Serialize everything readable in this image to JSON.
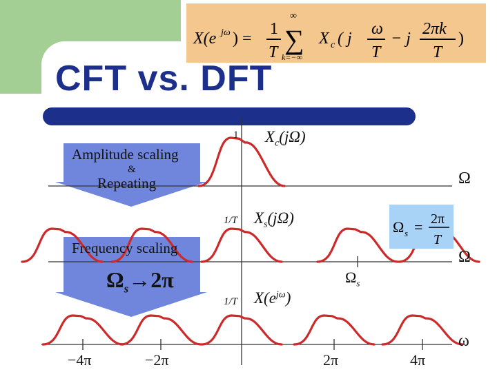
{
  "slide": {
    "title": "CFT vs. DFT",
    "formula": {
      "lhs": "X(e",
      "lhs_sup": "jω",
      "lhs_close": ") =",
      "frac1_num": "1",
      "frac1_den": "T",
      "sum_upper": "∞",
      "sum_sign": "∑",
      "sum_lower": "k=−∞",
      "term": "X",
      "term_sub": "c",
      "term_open": "( j",
      "frac2_num": "ω",
      "frac2_den": "T",
      "minus_j": "− j",
      "frac3_num": "2πk",
      "frac3_den": "T",
      "close": ")"
    }
  },
  "arrows": {
    "first": {
      "line1": "Amplitude scaling",
      "line2": "&",
      "line3": "Repeating",
      "color": "#6f86dc"
    },
    "second": {
      "line1": "Frequency scaling",
      "line2": "Ω",
      "line2_sub": "s",
      "line2_rest": "→2π",
      "color": "#6f86dc"
    }
  },
  "plots": {
    "top": {
      "amp": "1",
      "name": "X",
      "name_sub": "c",
      "name_rest": "(jΩ)",
      "axis": "Ω"
    },
    "middle": {
      "amp": "1/T",
      "name": "X",
      "name_sub": "s",
      "name_rest": "(jΩ)",
      "axis": "Ω",
      "tick": "Ω",
      "tick_sub": "s"
    },
    "bottom": {
      "amp": "1/T",
      "name": "X(e",
      "name_sup": "jω",
      "name_rest": ")",
      "axis": "ω",
      "ticks": [
        "−4π",
        "−2π",
        "2π",
        "4π"
      ]
    }
  },
  "omega_s_box": {
    "lhs": "Ω",
    "lhs_sub": "s",
    "eq": "=",
    "num": "2π",
    "den": "T"
  },
  "colors": {
    "accent": "#1c2f8a",
    "curve": "#cc2a2a",
    "arrow": "#6f86dc",
    "formula_bg": "#f4c78e",
    "green": "#a3cf95",
    "box_blue": "#a9d2f7"
  }
}
